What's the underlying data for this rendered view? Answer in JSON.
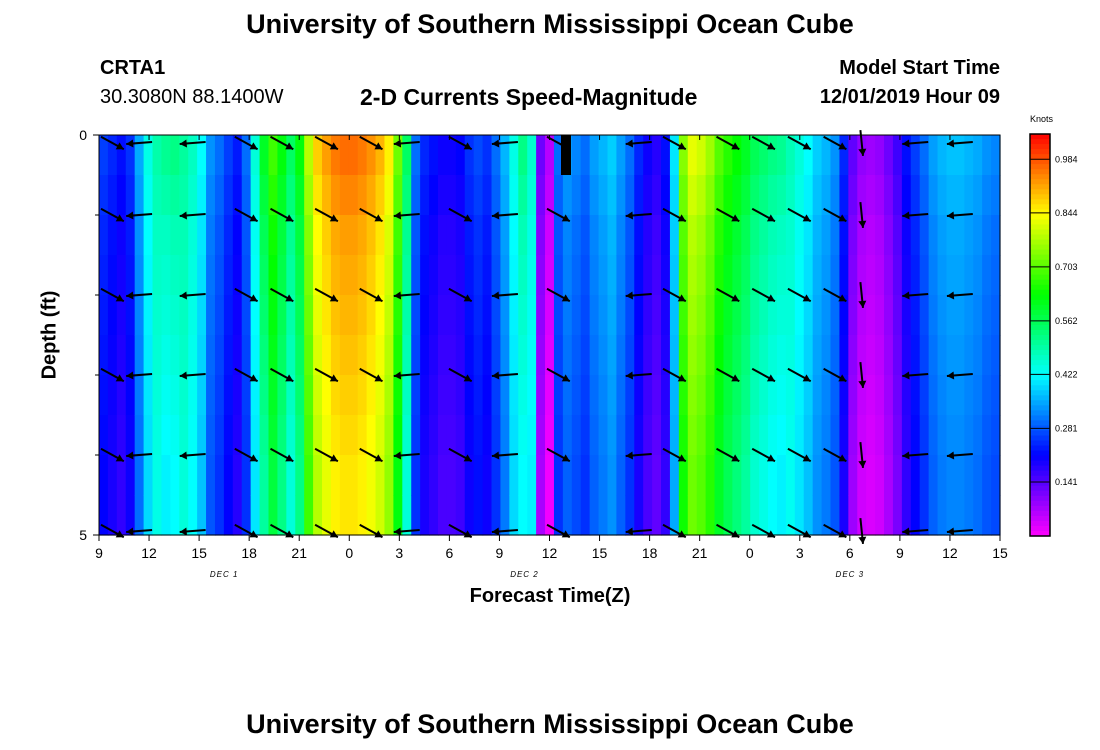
{
  "page": {
    "title_top": "University of Southern Mississippi Ocean Cube",
    "title_bottom": "University of Southern Mississippi Ocean Cube",
    "station": "CRTA1",
    "coords": "30.3080N 88.1400W",
    "plot_title": "2-D Currents Speed-Magnitude",
    "start_label": "Model Start Time",
    "start_value": "12/01/2019 Hour 09"
  },
  "chart_data": {
    "type": "heatmap",
    "title": "2-D Currents Speed-Magnitude",
    "xlabel": "Forecast Time(Z)",
    "ylabel": "Depth (ft)",
    "ylim": [
      0,
      5
    ],
    "y_ticks": [
      "0",
      "5"
    ],
    "x_ticks": [
      "9",
      "12",
      "15",
      "18",
      "21",
      "0",
      "3",
      "6",
      "9",
      "12",
      "15",
      "18",
      "21",
      "0",
      "3",
      "6",
      "9",
      "12",
      "15"
    ],
    "day_labels": [
      "DEC 1",
      "DEC 2",
      "DEC 3"
    ],
    "colorbar": {
      "unit": "Knots",
      "min": 0.0,
      "max": 1.05,
      "tick_labels": [
        "0.984",
        "0.844",
        "0.703",
        "0.562",
        "0.422",
        "0.281",
        "0.141"
      ],
      "tick_values": [
        0.984,
        0.844,
        0.703,
        0.562,
        0.422,
        0.281,
        0.141
      ]
    },
    "speed_by_hour": [
      0.26,
      0.24,
      0.22,
      0.25,
      0.35,
      0.44,
      0.49,
      0.51,
      0.52,
      0.5,
      0.47,
      0.42,
      0.33,
      0.3,
      0.26,
      0.23,
      0.3,
      0.45,
      0.6,
      0.68,
      0.62,
      0.55,
      0.62,
      0.78,
      0.88,
      0.92,
      0.95,
      0.96,
      0.96,
      0.95,
      0.93,
      0.9,
      0.85,
      0.72,
      0.55,
      0.3,
      0.24,
      0.22,
      0.2,
      0.2,
      0.21,
      0.25,
      0.27,
      0.25,
      0.3,
      0.36,
      0.44,
      0.52,
      0.46,
      0.12,
      0.06,
      0.3,
      0.34,
      0.32,
      0.3,
      0.34,
      0.36,
      0.38,
      0.34,
      0.3,
      0.24,
      0.2,
      0.18,
      0.22,
      0.4,
      0.74,
      0.82,
      0.8,
      0.76,
      0.7,
      0.66,
      0.63,
      0.6,
      0.56,
      0.54,
      0.52,
      0.51,
      0.48,
      0.45,
      0.42,
      0.38,
      0.36,
      0.33,
      0.24,
      0.13,
      0.09,
      0.08,
      0.09,
      0.12,
      0.16,
      0.22,
      0.26,
      0.3,
      0.34,
      0.36,
      0.37,
      0.37,
      0.36,
      0.35,
      0.33,
      0.32
    ],
    "depth_variation": [
      0.0,
      -0.02,
      -0.04,
      -0.05,
      -0.06,
      -0.07,
      -0.08,
      -0.09,
      -0.1,
      -0.1
    ],
    "vectors": {
      "hours": [
        1,
        4,
        10,
        16,
        20,
        25,
        30,
        34,
        40,
        45,
        51,
        60,
        64,
        70,
        74,
        78,
        82,
        85,
        91,
        96
      ],
      "depths": [
        0.1,
        1.0,
        2.0,
        3.0,
        4.0,
        4.95
      ],
      "directions": [
        "se",
        "w",
        "w",
        "se",
        "se",
        "se",
        "se",
        "w",
        "se",
        "w",
        "se",
        "w",
        "se",
        "se",
        "se",
        "se",
        "se",
        "s",
        "w",
        "w"
      ]
    },
    "grid": false
  }
}
